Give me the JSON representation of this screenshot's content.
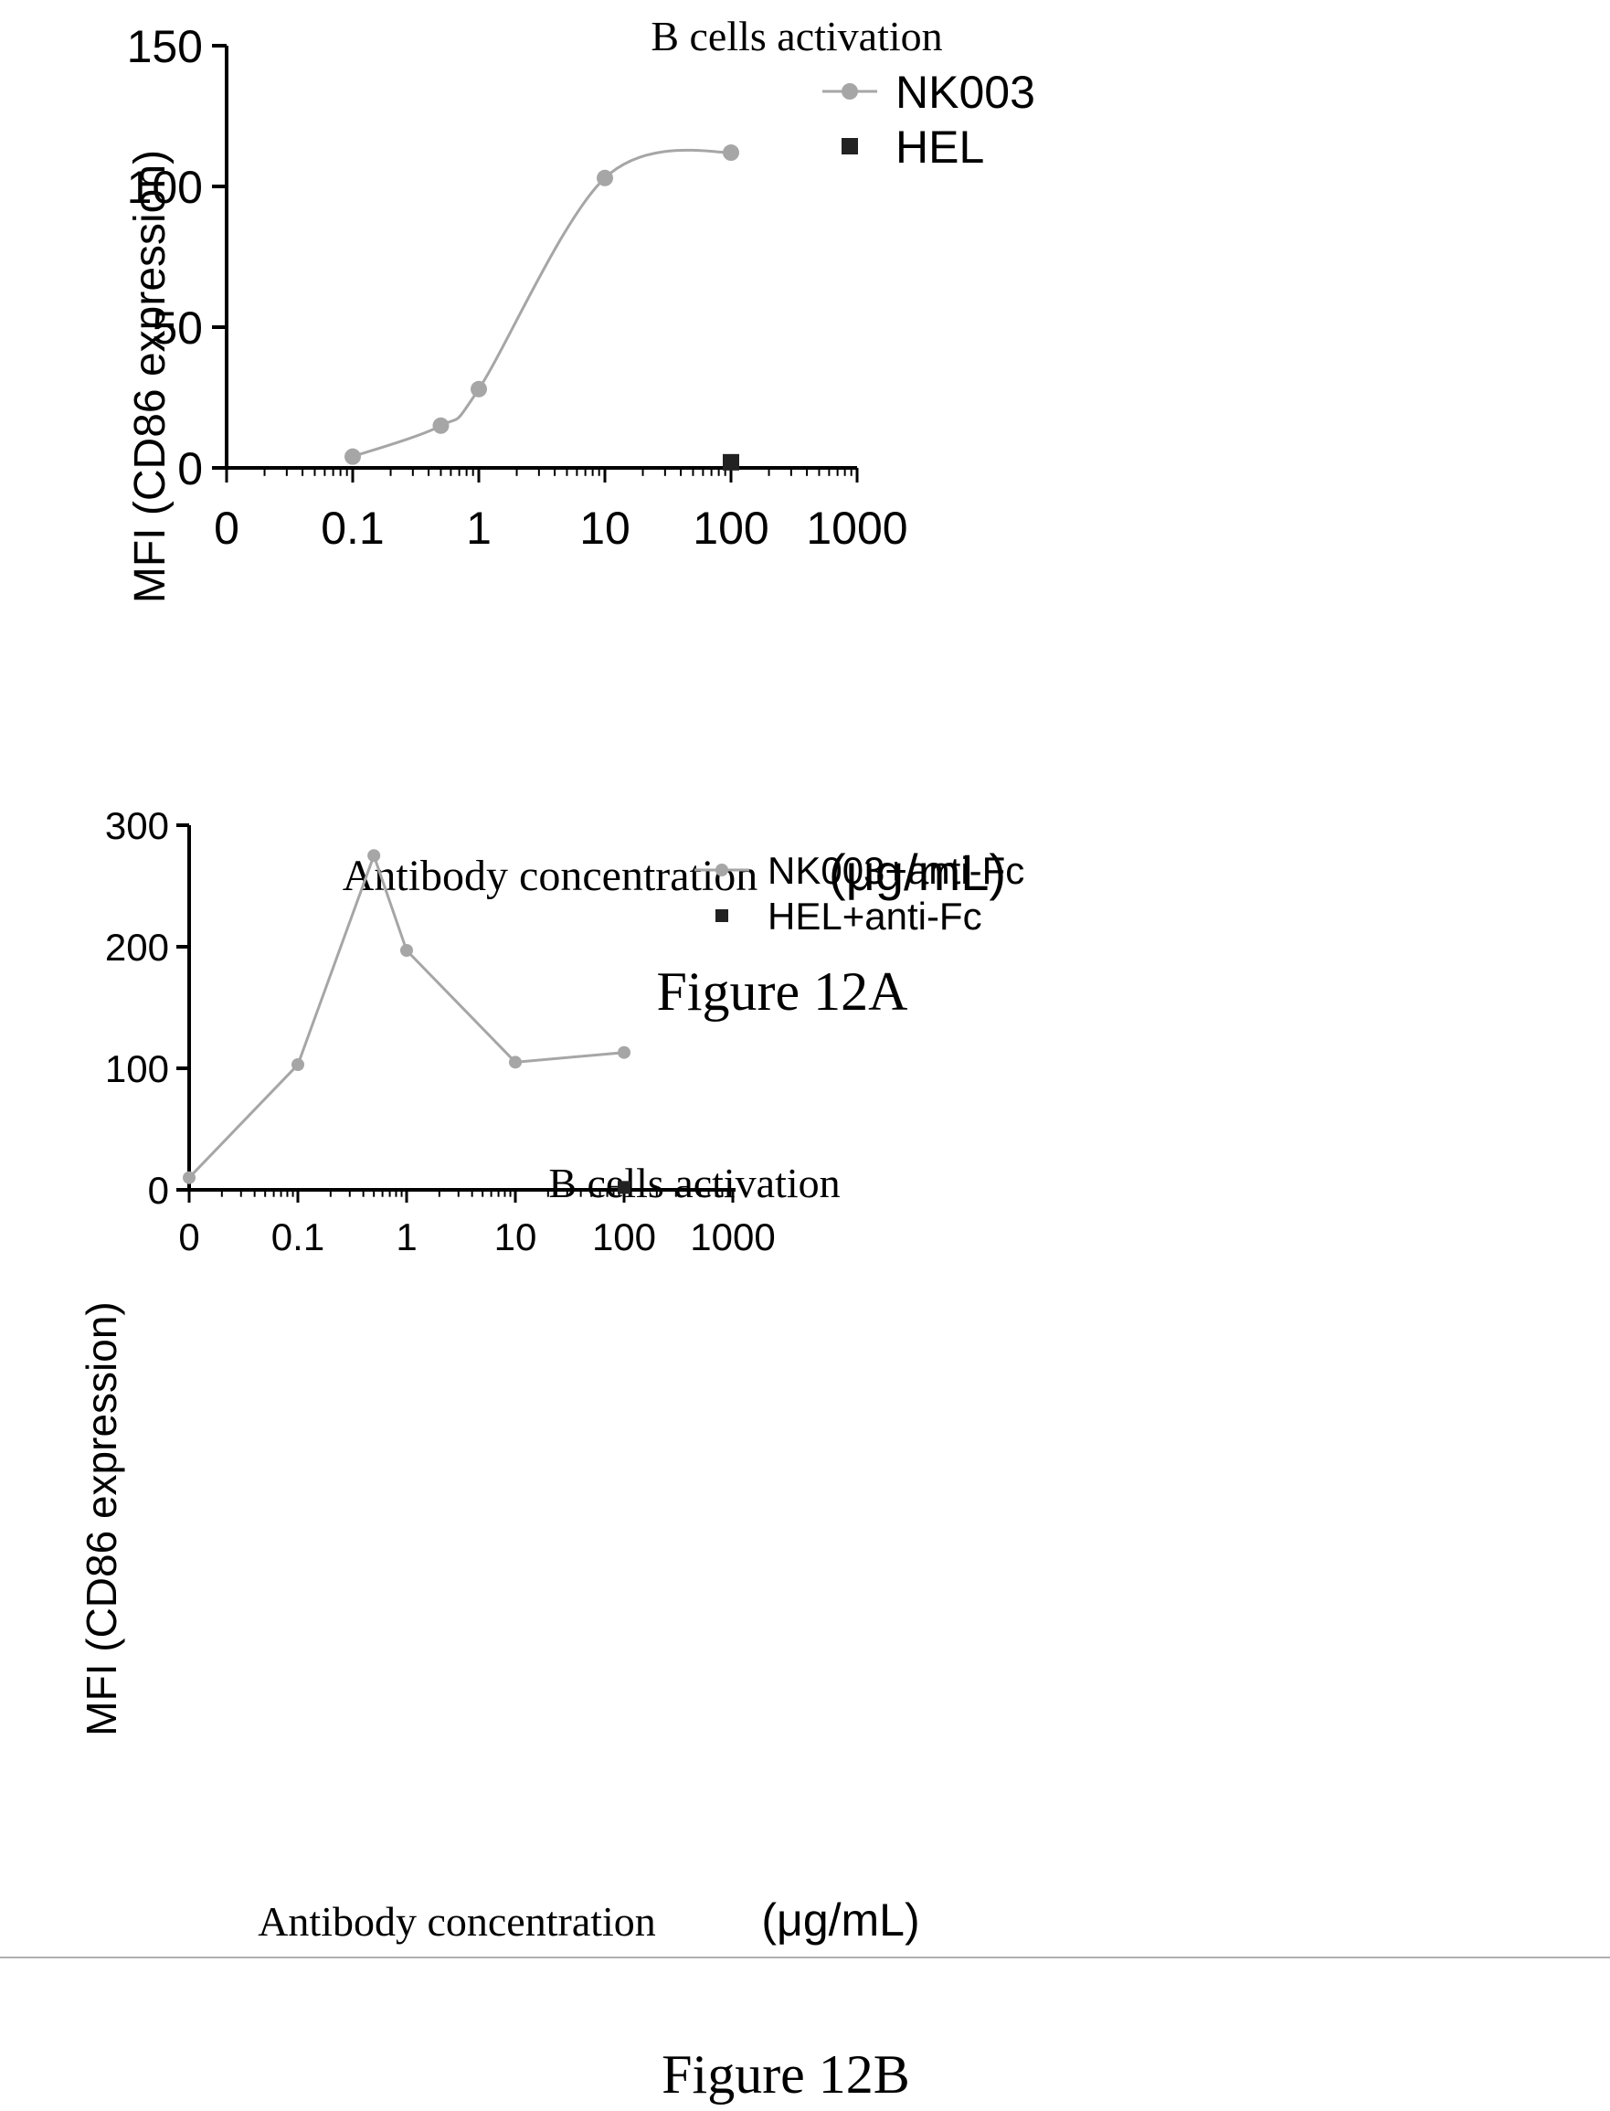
{
  "colors": {
    "series": "#a6a6a6",
    "control": "#222222",
    "axis": "#000000",
    "divider": "#b0b0b0"
  },
  "chart_data": [
    {
      "type": "line",
      "title": "B cells activation",
      "xlabel": "Antibody concentration",
      "xunit": "(μg/mL)",
      "ylabel": "MFI (CD86 expression)",
      "caption": "Figure 12A",
      "xscale": "log",
      "xtick_labels": [
        "0",
        "0.1",
        "1",
        "10",
        "100",
        "1000"
      ],
      "yticks": [
        0,
        50,
        100,
        150
      ],
      "ylim": [
        0,
        150
      ],
      "curve": "smooth",
      "legend_position": "top-right",
      "series": [
        {
          "name": "NK003",
          "marker": "circle",
          "x": [
            0.1,
            0.5,
            1,
            10,
            100
          ],
          "y": [
            4,
            15,
            28,
            103,
            112
          ]
        },
        {
          "name": "HEL",
          "marker": "square",
          "x": [
            100
          ],
          "y": [
            2
          ]
        }
      ]
    },
    {
      "type": "line",
      "title": "B cells activation",
      "xlabel": "Antibody concentration",
      "xunit": "(μg/mL)",
      "ylabel": "MFI (CD86 expression)",
      "caption": "Figure 12B",
      "xscale": "log",
      "xtick_labels": [
        "0",
        "0.1",
        "1",
        "10",
        "100",
        "1000"
      ],
      "yticks": [
        0,
        100,
        200,
        300
      ],
      "ylim": [
        0,
        300
      ],
      "curve": "straight",
      "legend_position": "top-right",
      "series": [
        {
          "name": "NK003+anti-Fc",
          "marker": "circle",
          "x": [
            0,
            0.1,
            0.5,
            1,
            10,
            100
          ],
          "y": [
            10,
            103,
            275,
            197,
            105,
            113
          ]
        },
        {
          "name": "HEL+anti-Fc",
          "marker": "square",
          "x": [
            100
          ],
          "y": [
            2
          ]
        }
      ]
    }
  ]
}
